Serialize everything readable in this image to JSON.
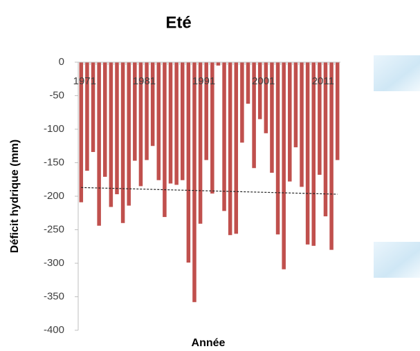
{
  "chart_data": {
    "type": "bar",
    "title": "Eté",
    "xlabel": "Année",
    "ylabel": "Déficit hydrique (mm)",
    "categories": [
      "1971",
      null,
      null,
      null,
      null,
      null,
      null,
      null,
      null,
      null,
      "1981",
      null,
      null,
      null,
      null,
      null,
      null,
      null,
      null,
      null,
      "1991",
      null,
      null,
      null,
      null,
      null,
      null,
      null,
      null,
      null,
      "2001",
      null,
      null,
      null,
      null,
      null,
      null,
      null,
      null,
      null,
      "2011",
      null,
      null,
      null
    ],
    "values": [
      -209,
      -162,
      -134,
      -244,
      -171,
      -216,
      -197,
      -240,
      -214,
      -147,
      -185,
      -146,
      -125,
      -176,
      -231,
      -181,
      -183,
      -176,
      -299,
      -358,
      -241,
      -146,
      -196,
      -5,
      -222,
      -258,
      -256,
      -120,
      -62,
      -158,
      -85,
      -106,
      -165,
      -257,
      -309,
      -178,
      -127,
      -186,
      -272,
      -274,
      -168,
      -230,
      -280,
      -146
    ],
    "color": "#c0504d",
    "trend": {
      "values": [
        -187,
        -197
      ],
      "color": "#222222"
    },
    "ylim": [
      -400,
      0
    ],
    "yticks": [
      0,
      -50,
      -100,
      -150,
      -200,
      -250,
      -300,
      -350,
      -400
    ]
  }
}
